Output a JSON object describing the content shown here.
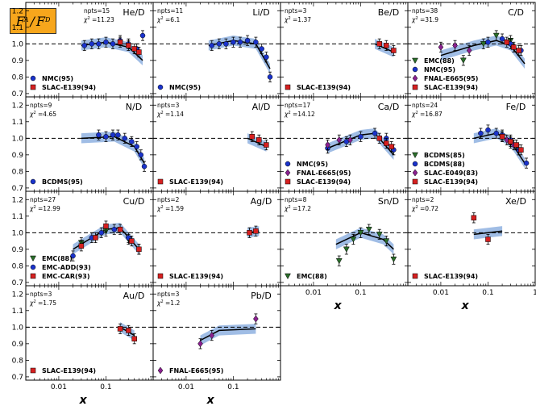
{
  "figure_label": {
    "base": "F",
    "sup": "A",
    "sup2": "D",
    "slash": "/"
  },
  "chart_data": {
    "type": "scatter",
    "x_axis": {
      "label": "x",
      "scale": "log",
      "xlim": [
        0.002,
        1
      ],
      "ticks": [
        0.01,
        0.1,
        1
      ],
      "tick_labels": [
        "0.01",
        "0.1",
        "1"
      ]
    },
    "y_axis": {
      "ylim": [
        0.68,
        1.25
      ],
      "ticks": [
        0.7,
        0.8,
        0.9,
        1.0,
        1.1,
        1.2
      ],
      "tick_labels": [
        "0.7",
        "0.8",
        "0.9",
        "1.0",
        "1.1",
        "1.2"
      ]
    },
    "reference_line": 1.0,
    "panels": [
      {
        "title": "He/D",
        "npts": "npts=15",
        "chi2": "11.23",
        "band": [
          [
            0.03,
            0.99
          ],
          [
            0.1,
            1.01
          ],
          [
            0.3,
            0.98
          ],
          [
            0.6,
            0.9
          ]
        ],
        "series": [
          {
            "name": "NMC(95)",
            "marker": "circle",
            "color": "#1a33cc",
            "points": [
              [
                0.035,
                0.99
              ],
              [
                0.05,
                1.0
              ],
              [
                0.07,
                1.0
              ],
              [
                0.1,
                1.01
              ],
              [
                0.14,
                1.0
              ],
              [
                0.2,
                1.02
              ],
              [
                0.3,
                1.0
              ],
              [
                0.45,
                0.97
              ],
              [
                0.6,
                1.05
              ]
            ]
          },
          {
            "name": "SLAC-E139(94)",
            "marker": "square",
            "color": "#d62020",
            "points": [
              [
                0.2,
                1.01
              ],
              [
                0.3,
                0.99
              ],
              [
                0.4,
                0.97
              ],
              [
                0.5,
                0.95
              ]
            ]
          }
        ]
      },
      {
        "title": "Li/D",
        "npts": "npts=11",
        "chi2": "6.1",
        "band": [
          [
            0.03,
            0.99
          ],
          [
            0.1,
            1.02
          ],
          [
            0.3,
            1.0
          ],
          [
            0.6,
            0.85
          ]
        ],
        "series": [
          {
            "name": "NMC(95)",
            "marker": "circle",
            "color": "#1a33cc",
            "points": [
              [
                0.035,
                0.99
              ],
              [
                0.05,
                1.0
              ],
              [
                0.07,
                1.0
              ],
              [
                0.1,
                1.01
              ],
              [
                0.14,
                1.01
              ],
              [
                0.2,
                1.02
              ],
              [
                0.3,
                1.01
              ],
              [
                0.4,
                0.97
              ],
              [
                0.5,
                0.92
              ],
              [
                0.6,
                0.8
              ]
            ]
          }
        ]
      },
      {
        "title": "Be/D",
        "npts": "npts=3",
        "chi2": "1.37",
        "band": [
          [
            0.2,
            1.0
          ],
          [
            0.5,
            0.95
          ]
        ],
        "series": [
          {
            "name": "SLAC-E139(94)",
            "marker": "square",
            "color": "#d62020",
            "points": [
              [
                0.25,
                1.0
              ],
              [
                0.35,
                0.99
              ],
              [
                0.5,
                0.96
              ]
            ]
          }
        ]
      },
      {
        "title": "C/D",
        "npts": "npts=38",
        "chi2": "31.9",
        "band": [
          [
            0.01,
            0.93
          ],
          [
            0.05,
            0.99
          ],
          [
            0.15,
            1.02
          ],
          [
            0.3,
            0.99
          ],
          [
            0.6,
            0.88
          ]
        ],
        "series": [
          {
            "name": "EMC(88)",
            "marker": "triangle",
            "color": "#2a6e2a",
            "points": [
              [
                0.03,
                0.9
              ],
              [
                0.08,
                1.0
              ],
              [
                0.15,
                1.05
              ],
              [
                0.3,
                1.02
              ]
            ]
          },
          {
            "name": "NMC(95)",
            "marker": "circle",
            "color": "#1a33cc",
            "points": [
              [
                0.1,
                1.01
              ],
              [
                0.2,
                1.03
              ],
              [
                0.3,
                1.0
              ],
              [
                0.5,
                0.96
              ]
            ]
          },
          {
            "name": "FNAL-E665(95)",
            "marker": "diamond",
            "color": "#8a2090",
            "points": [
              [
                0.01,
                0.98
              ],
              [
                0.02,
                0.99
              ],
              [
                0.04,
                0.96
              ]
            ]
          },
          {
            "name": "SLAC-E139(94)",
            "marker": "square",
            "color": "#d62020",
            "points": [
              [
                0.25,
                1.01
              ],
              [
                0.35,
                0.98
              ],
              [
                0.45,
                0.96
              ]
            ]
          }
        ]
      },
      {
        "title": "N/D",
        "npts": "npts=9",
        "chi2": "4.65",
        "band": [
          [
            0.03,
            1.0
          ],
          [
            0.15,
            1.01
          ],
          [
            0.4,
            0.95
          ],
          [
            0.65,
            0.85
          ]
        ],
        "series": [
          {
            "name": "BCDMS(95)",
            "marker": "circle",
            "color": "#1a33cc",
            "points": [
              [
                0.07,
                1.02
              ],
              [
                0.1,
                1.01
              ],
              [
                0.14,
                1.02
              ],
              [
                0.18,
                1.02
              ],
              [
                0.25,
                1.0
              ],
              [
                0.35,
                0.98
              ],
              [
                0.45,
                0.95
              ],
              [
                0.55,
                0.9
              ],
              [
                0.65,
                0.83
              ]
            ]
          }
        ]
      },
      {
        "title": "Al/D",
        "npts": "npts=3",
        "chi2": "1.14",
        "band": [
          [
            0.2,
            1.0
          ],
          [
            0.5,
            0.95
          ]
        ],
        "series": [
          {
            "name": "SLAC-E139(94)",
            "marker": "square",
            "color": "#d62020",
            "points": [
              [
                0.25,
                1.01
              ],
              [
                0.35,
                0.99
              ],
              [
                0.5,
                0.96
              ]
            ]
          }
        ]
      },
      {
        "title": "Ca/D",
        "npts": "npts=17",
        "chi2": "14.12",
        "band": [
          [
            0.02,
            0.94
          ],
          [
            0.1,
            1.02
          ],
          [
            0.2,
            1.03
          ],
          [
            0.5,
            0.9
          ]
        ],
        "series": [
          {
            "name": "NMC(95)",
            "marker": "circle",
            "color": "#1a33cc",
            "points": [
              [
                0.02,
                0.94
              ],
              [
                0.05,
                0.98
              ],
              [
                0.1,
                1.01
              ],
              [
                0.2,
                1.03
              ],
              [
                0.35,
                1.0
              ],
              [
                0.5,
                0.93
              ]
            ]
          },
          {
            "name": "FNAL-E665(95)",
            "marker": "diamond",
            "color": "#8a2090",
            "points": [
              [
                0.02,
                0.96
              ],
              [
                0.035,
                0.99
              ],
              [
                0.06,
                0.99
              ]
            ]
          },
          {
            "name": "SLAC-E139(94)",
            "marker": "square",
            "color": "#d62020",
            "points": [
              [
                0.25,
                1.0
              ],
              [
                0.35,
                0.97
              ],
              [
                0.45,
                0.95
              ]
            ]
          }
        ]
      },
      {
        "title": "Fe/D",
        "npts": "npts=24",
        "chi2": "16.87",
        "band": [
          [
            0.05,
            1.0
          ],
          [
            0.15,
            1.03
          ],
          [
            0.3,
            0.98
          ],
          [
            0.6,
            0.85
          ]
        ],
        "series": [
          {
            "name": "BCDMS(85)",
            "marker": "triangle",
            "color": "#2a6e2a",
            "points": [
              [
                0.2,
                1.01
              ],
              [
                0.3,
                0.97
              ],
              [
                0.45,
                0.93
              ]
            ]
          },
          {
            "name": "BCDMS(88)",
            "marker": "circle",
            "color": "#1a33cc",
            "points": [
              [
                0.07,
                1.03
              ],
              [
                0.1,
                1.05
              ],
              [
                0.15,
                1.03
              ],
              [
                0.2,
                1.02
              ],
              [
                0.3,
                0.99
              ],
              [
                0.45,
                0.93
              ],
              [
                0.65,
                0.85
              ]
            ]
          },
          {
            "name": "SLAC-E049(83)",
            "marker": "diamond",
            "color": "#8a2090",
            "points": [
              [
                0.25,
                0.99
              ],
              [
                0.35,
                0.96
              ]
            ]
          },
          {
            "name": "SLAC-E139(94)",
            "marker": "square",
            "color": "#d62020",
            "points": [
              [
                0.2,
                1.01
              ],
              [
                0.3,
                0.98
              ],
              [
                0.4,
                0.96
              ],
              [
                0.5,
                0.93
              ]
            ]
          }
        ]
      },
      {
        "title": "Cu/D",
        "npts": "npts=27",
        "chi2": "12.99",
        "band": [
          [
            0.02,
            0.9
          ],
          [
            0.05,
            0.97
          ],
          [
            0.1,
            1.02
          ],
          [
            0.2,
            1.03
          ],
          [
            0.5,
            0.9
          ]
        ],
        "series": [
          {
            "name": "EMC(88)",
            "marker": "triangle",
            "color": "#2a6e2a",
            "points": [
              [
                0.03,
                0.94
              ],
              [
                0.1,
                1.01
              ],
              [
                0.3,
                0.96
              ]
            ]
          },
          {
            "name": "EMC-ADD(93)",
            "marker": "circle",
            "color": "#1a33cc",
            "points": [
              [
                0.02,
                0.86
              ],
              [
                0.05,
                0.97
              ],
              [
                0.08,
                1.0
              ],
              [
                0.15,
                1.02
              ],
              [
                0.3,
                0.97
              ],
              [
                0.5,
                0.9
              ]
            ]
          },
          {
            "name": "EMC-CAR(93)",
            "marker": "square",
            "color": "#d62020",
            "points": [
              [
                0.03,
                0.92
              ],
              [
                0.06,
                0.97
              ],
              [
                0.1,
                1.04
              ],
              [
                0.2,
                1.02
              ],
              [
                0.35,
                0.95
              ],
              [
                0.5,
                0.9
              ]
            ]
          }
        ]
      },
      {
        "title": "Ag/D",
        "npts": "npts=2",
        "chi2": "1.59",
        "band": [
          [
            0.2,
            1.0
          ],
          [
            0.35,
            1.01
          ]
        ],
        "series": [
          {
            "name": "SLAC-E139(94)",
            "marker": "square",
            "color": "#d62020",
            "points": [
              [
                0.22,
                1.0
              ],
              [
                0.3,
                1.01
              ]
            ]
          }
        ]
      },
      {
        "title": "Sn/D",
        "npts": "npts=8",
        "chi2": "17.2",
        "band": [
          [
            0.03,
            0.93
          ],
          [
            0.1,
            1.0
          ],
          [
            0.3,
            0.96
          ],
          [
            0.5,
            0.9
          ]
        ],
        "series": [
          {
            "name": "EMC(88)",
            "marker": "triangle",
            "color": "#2a6e2a",
            "points": [
              [
                0.035,
                0.83
              ],
              [
                0.05,
                0.9
              ],
              [
                0.07,
                0.96
              ],
              [
                0.1,
                1.0
              ],
              [
                0.15,
                1.02
              ],
              [
                0.25,
                0.99
              ],
              [
                0.35,
                0.95
              ],
              [
                0.5,
                0.84
              ]
            ]
          }
        ]
      },
      {
        "title": "Xe/D",
        "npts": "npts=2",
        "chi2": "0.72",
        "band": [
          [
            0.05,
            0.99
          ],
          [
            0.2,
            1.01
          ]
        ],
        "series": [
          {
            "name": "SLAC-E139(94)",
            "marker": "square",
            "color": "#d62020",
            "points": [
              [
                0.05,
                1.09
              ],
              [
                0.1,
                0.96
              ]
            ]
          }
        ]
      },
      {
        "title": "Au/D",
        "npts": "npts=3",
        "chi2": "1.75",
        "band": [
          [
            0.2,
            1.0
          ],
          [
            0.4,
            0.95
          ]
        ],
        "series": [
          {
            "name": "SLAC-E139(94)",
            "marker": "square",
            "color": "#d62020",
            "points": [
              [
                0.2,
                0.99
              ],
              [
                0.3,
                0.98
              ],
              [
                0.4,
                0.93
              ]
            ]
          }
        ]
      },
      {
        "title": "Pb/D",
        "npts": "npts=3",
        "chi2": "1.2",
        "band": [
          [
            0.02,
            0.92
          ],
          [
            0.05,
            0.98
          ],
          [
            0.3,
            0.99
          ]
        ],
        "series": [
          {
            "name": "FNAL-E665(95)",
            "marker": "diamond",
            "color": "#8a2090",
            "points": [
              [
                0.02,
                0.9
              ],
              [
                0.035,
                0.95
              ],
              [
                0.3,
                1.05
              ]
            ]
          }
        ]
      }
    ]
  }
}
